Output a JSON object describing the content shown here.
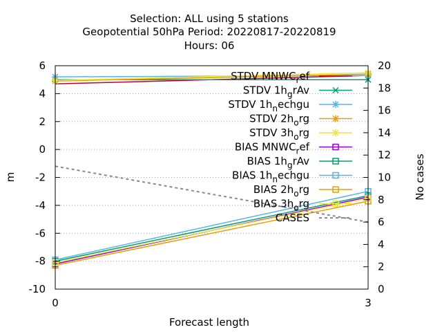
{
  "chart_data": {
    "type": "line",
    "title_lines": [
      "Selection: ALL using     5 stations",
      "Geopotential 50hPa   Period: 20220817-20220819",
      "Hours:  06"
    ],
    "xlabel": "Forecast length",
    "ylabel": "m",
    "y2label": "No cases",
    "xlim": [
      0,
      3
    ],
    "ylim": [
      -10,
      6
    ],
    "y2lim": [
      0,
      20
    ],
    "x_ticks": [
      0,
      3
    ],
    "y_ticks": [
      -10,
      -8,
      -6,
      -4,
      -2,
      0,
      2,
      4,
      6
    ],
    "y2_ticks": [
      0,
      2,
      4,
      6,
      8,
      10,
      12,
      14,
      16,
      18,
      20
    ],
    "grid": true,
    "legend_position": "top-right",
    "series": [
      {
        "label_parts": [
          [
            "STDV MNWC",
            "n"
          ],
          [
            "r",
            "sub"
          ],
          [
            "ef",
            "n"
          ]
        ],
        "x": [
          0,
          3
        ],
        "y": [
          4.7,
          5.3
        ],
        "color": "#c00030",
        "marker": "none",
        "axis": "y"
      },
      {
        "label_parts": [
          [
            "STDV 1h",
            "n"
          ],
          [
            "g",
            "sub"
          ],
          [
            "rAv",
            "n"
          ]
        ],
        "x": [
          0,
          3
        ],
        "y": [
          5.0,
          5.0
        ],
        "color": "#009e73",
        "marker": "x",
        "axis": "y"
      },
      {
        "label_parts": [
          [
            "STDV 1h",
            "n"
          ],
          [
            "n",
            "sub"
          ],
          [
            "echgu",
            "n"
          ]
        ],
        "x": [
          0,
          3
        ],
        "y": [
          5.2,
          5.3
        ],
        "color": "#56b4e9",
        "marker": "asterisk",
        "axis": "y"
      },
      {
        "label_parts": [
          [
            "STDV 2h",
            "n"
          ],
          [
            "o",
            "sub"
          ],
          [
            "rg",
            "n"
          ]
        ],
        "x": [
          0,
          3
        ],
        "y": [
          4.9,
          5.4
        ],
        "color": "#e69f00",
        "marker": "asterisk",
        "axis": "y"
      },
      {
        "label_parts": [
          [
            "STDV 3h",
            "n"
          ],
          [
            "o",
            "sub"
          ],
          [
            "rg",
            "n"
          ]
        ],
        "x": [
          0,
          3
        ],
        "y": [
          4.95,
          5.5
        ],
        "color": "#f0e442",
        "marker": "asterisk",
        "axis": "y"
      },
      {
        "label_parts": [
          [
            "BIAS MNWC",
            "n"
          ],
          [
            "r",
            "sub"
          ],
          [
            "ef",
            "n"
          ]
        ],
        "x": [
          0,
          3
        ],
        "y": [
          -8.2,
          -3.4
        ],
        "color": "#9400d3",
        "marker": "square",
        "axis": "y"
      },
      {
        "label_parts": [
          [
            "BIAS 1h",
            "n"
          ],
          [
            "g",
            "sub"
          ],
          [
            "rAv",
            "n"
          ]
        ],
        "x": [
          0,
          3
        ],
        "y": [
          -8.0,
          -3.3
        ],
        "color": "#009e73",
        "marker": "square",
        "axis": "y"
      },
      {
        "label_parts": [
          [
            "BIAS 1h",
            "n"
          ],
          [
            "n",
            "sub"
          ],
          [
            "echgu",
            "n"
          ]
        ],
        "x": [
          0,
          3
        ],
        "y": [
          -7.9,
          -3.0
        ],
        "color": "#56b4e9",
        "marker": "square",
        "axis": "y"
      },
      {
        "label_parts": [
          [
            "BIAS 2h",
            "n"
          ],
          [
            "o",
            "sub"
          ],
          [
            "rg",
            "n"
          ]
        ],
        "x": [
          0,
          3
        ],
        "y": [
          -8.3,
          -3.7
        ],
        "color": "#e69f00",
        "marker": "square",
        "axis": "y"
      },
      {
        "label_parts": [
          [
            "BIAS 3h",
            "n"
          ],
          [
            "o",
            "sub"
          ],
          [
            "rg",
            "n"
          ]
        ],
        "x": [
          0,
          3
        ],
        "y": [
          -8.1,
          -3.5
        ],
        "color": "#f0e442",
        "marker": "square",
        "axis": "y"
      },
      {
        "label_parts": [
          [
            "CASES",
            "n"
          ]
        ],
        "x": [
          0,
          3
        ],
        "y": [
          11,
          6
        ],
        "color": "#888888",
        "marker": "none",
        "dash": true,
        "axis": "y2"
      }
    ]
  }
}
